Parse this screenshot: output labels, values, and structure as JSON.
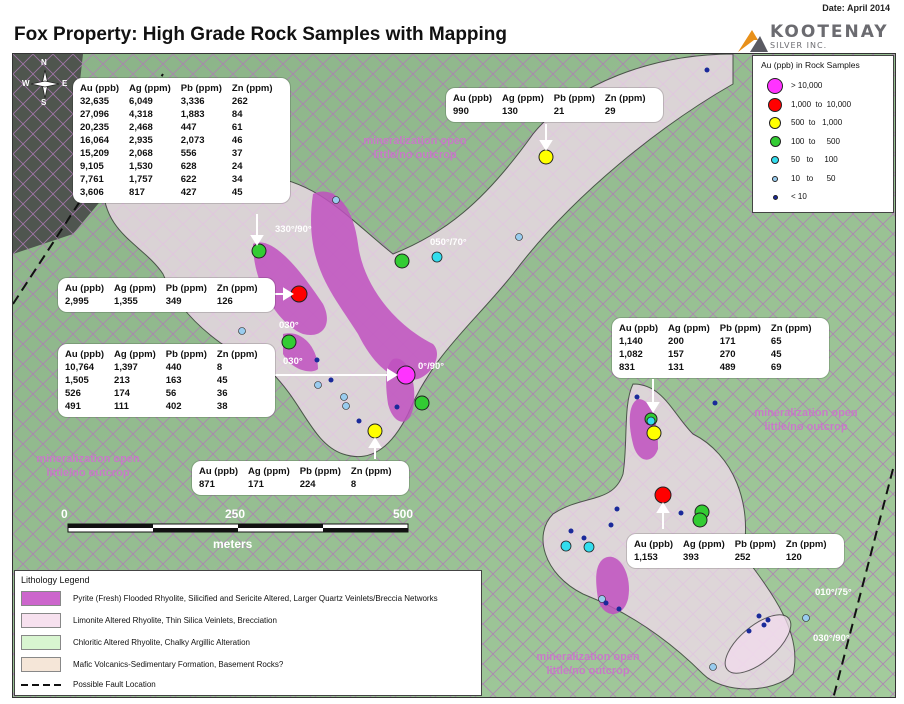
{
  "header": {
    "date": "Date: April 2014",
    "title": "Fox Property: High Grade Rock Samples with Mapping"
  },
  "logo": {
    "name": "KOOTENAY",
    "sub": "SILVER INC."
  },
  "compass": {
    "n": "N",
    "s": "S",
    "e": "E",
    "w": "W"
  },
  "callouts": [
    {
      "id": "nw",
      "headers": [
        "Au (ppb)",
        "Ag (ppm)",
        "Pb (ppm)",
        "Zn (ppm)"
      ],
      "rows": [
        [
          "32,635",
          "6,049",
          "3,336",
          "262"
        ],
        [
          "27,096",
          "4,318",
          "1,883",
          "84"
        ],
        [
          "20,235",
          "2,468",
          "447",
          "61"
        ],
        [
          "16,064",
          "2,935",
          "2,073",
          "46"
        ],
        [
          "15,209",
          "2,068",
          "556",
          "37"
        ],
        [
          "9,105",
          "1,530",
          "628",
          "24"
        ],
        [
          "7,761",
          "1,757",
          "622",
          "34"
        ],
        [
          "3,606",
          "817",
          "427",
          "45"
        ]
      ]
    },
    {
      "id": "north",
      "headers": [
        "Au (ppb)",
        "Ag (ppm)",
        "Pb (ppm)",
        "Zn (ppm)"
      ],
      "rows": [
        [
          "990",
          "130",
          "21",
          "29"
        ]
      ]
    },
    {
      "id": "mid-left",
      "headers": [
        "Au (ppb)",
        "Ag (ppm)",
        "Pb (ppm)",
        "Zn (ppm)"
      ],
      "rows": [
        [
          "2,995",
          "1,355",
          "349",
          "126"
        ]
      ]
    },
    {
      "id": "west",
      "headers": [
        "Au (ppb)",
        "Ag (ppm)",
        "Pb (ppm)",
        "Zn (ppm)"
      ],
      "rows": [
        [
          "10,764",
          "1,397",
          "440",
          "8"
        ],
        [
          "1,505",
          "213",
          "163",
          "45"
        ],
        [
          "526",
          "174",
          "56",
          "36"
        ],
        [
          "491",
          "111",
          "402",
          "38"
        ]
      ]
    },
    {
      "id": "south-center",
      "headers": [
        "Au (ppb)",
        "Ag (ppm)",
        "Pb (ppm)",
        "Zn (ppm)"
      ],
      "rows": [
        [
          "871",
          "171",
          "224",
          "8"
        ]
      ]
    },
    {
      "id": "east",
      "headers": [
        "Au (ppb)",
        "Ag (ppm)",
        "Pb (ppm)",
        "Zn (ppm)"
      ],
      "rows": [
        [
          "1,140",
          "200",
          "171",
          "65"
        ],
        [
          "1,082",
          "157",
          "270",
          "45"
        ],
        [
          "831",
          "131",
          "489",
          "69"
        ]
      ]
    },
    {
      "id": "southeast",
      "headers": [
        "Au (ppb)",
        "Ag (ppm)",
        "Pb (ppm)",
        "Zn (ppm)"
      ],
      "rows": [
        [
          "1,153",
          "393",
          "252",
          "120"
        ]
      ]
    }
  ],
  "map_labels": {
    "mineralization_1": "mineralization open",
    "outcrop_1": "little/no outcrop",
    "mineralization_2": "mineralization open",
    "outcrop_2": "little/no outcrop",
    "mineralization_3": "mineralization open",
    "outcrop_3": "little/no outcrop",
    "mineralization_4": "mineralization open",
    "outcrop_4": "little/no outcrop"
  },
  "angles": {
    "a1": "330°/90°",
    "a2": "050°/70°",
    "a3": "030°",
    "a4": "030°",
    "a5": "0°/90°",
    "a6": "010°/75°",
    "a7": "030°/90°"
  },
  "scale_bar": {
    "tick_0": "0",
    "tick_250": "250",
    "tick_500": "500",
    "unit": "meters"
  },
  "au_legend": {
    "title": "Au (ppb) in Rock Samples",
    "items": [
      {
        "label": "> 10,000",
        "color": "#ff33ff"
      },
      {
        "label": "1,000  to  10,000",
        "color": "#ff0000"
      },
      {
        "label": "500  to   1,000",
        "color": "#ffff00"
      },
      {
        "label": "100  to     500",
        "color": "#33cc33"
      },
      {
        "label": "50   to     100",
        "color": "#33ddee"
      },
      {
        "label": "10   to      50",
        "color": "#99ccee"
      },
      {
        "label": "< 10",
        "color": "#1a2a9a"
      }
    ]
  },
  "lithology_legend": {
    "title": "Lithology Legend",
    "items": [
      {
        "label": "Pyrite (Fresh) Flooded Rhyolite, Silicified and Sericite Altered, Larger Quartz Veinlets/Breccia Networks",
        "color": "#cc66cc"
      },
      {
        "label": "Limonite Altered Rhyolite, Thin Silica Veinlets, Brecciation",
        "color": "#f7e1ef"
      },
      {
        "label": "Chloritic Altered Rhyolite, Chalky Argillic Alteration",
        "color": "#d8f5d0"
      },
      {
        "label": "Mafic Volcanics-Sedimentary Formation, Basement Rocks?",
        "color": "#f5e6d8"
      }
    ],
    "fault_label": "Possible Fault Location"
  }
}
